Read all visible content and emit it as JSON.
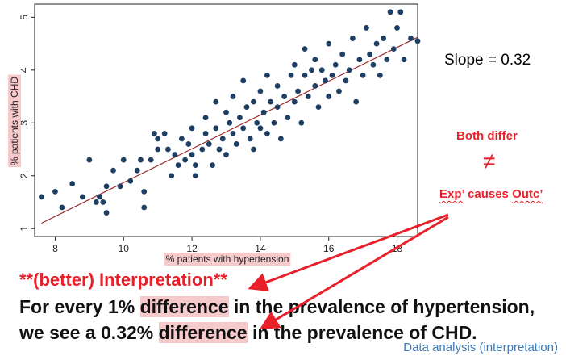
{
  "chart_data": {
    "type": "scatter",
    "xlabel": "% patients with hypertension",
    "ylabel": "% patients with CHD",
    "xlim": [
      7.4,
      18.6
    ],
    "ylim": [
      0.85,
      5.25
    ],
    "x_ticks": [
      8,
      10,
      12,
      14,
      16,
      18
    ],
    "x_tick_labels": [
      "8",
      "10",
      "12",
      "14",
      "16",
      "18"
    ],
    "y_ticks": [
      1,
      2,
      3,
      4,
      5
    ],
    "y_tick_labels": [
      "1",
      "2",
      "3",
      "4",
      "5"
    ],
    "point_color": "#1e3f63",
    "fit_line_color": "#9c2a2a",
    "fit_line": {
      "intercept": -1.33,
      "slope": 0.32,
      "x_range": [
        7.6,
        18.6
      ]
    },
    "points": [
      [
        7.6,
        1.6
      ],
      [
        8.0,
        1.7
      ],
      [
        8.2,
        1.4
      ],
      [
        8.5,
        1.85
      ],
      [
        8.8,
        1.6
      ],
      [
        9.0,
        2.3
      ],
      [
        9.2,
        1.5
      ],
      [
        9.3,
        1.6
      ],
      [
        9.4,
        1.5
      ],
      [
        9.5,
        1.8
      ],
      [
        9.5,
        1.3
      ],
      [
        9.7,
        2.1
      ],
      [
        9.9,
        1.8
      ],
      [
        10.0,
        2.3
      ],
      [
        10.2,
        1.9
      ],
      [
        10.4,
        2.1
      ],
      [
        10.5,
        2.3
      ],
      [
        10.6,
        1.7
      ],
      [
        10.6,
        1.4
      ],
      [
        10.8,
        2.3
      ],
      [
        10.9,
        2.8
      ],
      [
        11.0,
        2.5
      ],
      [
        11.0,
        2.7
      ],
      [
        11.2,
        2.8
      ],
      [
        11.3,
        2.5
      ],
      [
        11.4,
        2.0
      ],
      [
        11.5,
        2.4
      ],
      [
        11.6,
        2.2
      ],
      [
        11.7,
        2.7
      ],
      [
        11.8,
        2.3
      ],
      [
        11.9,
        2.6
      ],
      [
        12.0,
        2.4
      ],
      [
        12.0,
        2.9
      ],
      [
        12.1,
        2.2
      ],
      [
        12.1,
        2.0
      ],
      [
        12.3,
        2.5
      ],
      [
        12.4,
        2.8
      ],
      [
        12.4,
        3.1
      ],
      [
        12.5,
        2.6
      ],
      [
        12.6,
        2.2
      ],
      [
        12.7,
        2.9
      ],
      [
        12.7,
        3.4
      ],
      [
        12.8,
        2.5
      ],
      [
        12.9,
        2.7
      ],
      [
        13.0,
        3.2
      ],
      [
        13.0,
        2.4
      ],
      [
        13.1,
        3.0
      ],
      [
        13.2,
        2.8
      ],
      [
        13.2,
        3.5
      ],
      [
        13.3,
        2.6
      ],
      [
        13.4,
        3.1
      ],
      [
        13.5,
        2.9
      ],
      [
        13.5,
        3.8
      ],
      [
        13.6,
        3.3
      ],
      [
        13.7,
        2.7
      ],
      [
        13.8,
        3.4
      ],
      [
        13.8,
        2.5
      ],
      [
        13.9,
        3.0
      ],
      [
        14.0,
        3.6
      ],
      [
        14.0,
        2.9
      ],
      [
        14.1,
        3.2
      ],
      [
        14.2,
        2.8
      ],
      [
        14.2,
        3.9
      ],
      [
        14.3,
        3.4
      ],
      [
        14.4,
        3.0
      ],
      [
        14.5,
        3.7
      ],
      [
        14.5,
        3.3
      ],
      [
        14.6,
        2.7
      ],
      [
        14.7,
        3.5
      ],
      [
        14.8,
        3.1
      ],
      [
        14.9,
        3.9
      ],
      [
        15.0,
        3.4
      ],
      [
        15.0,
        4.1
      ],
      [
        15.1,
        3.6
      ],
      [
        15.2,
        3.0
      ],
      [
        15.3,
        3.9
      ],
      [
        15.3,
        4.4
      ],
      [
        15.4,
        3.5
      ],
      [
        15.5,
        4.0
      ],
      [
        15.6,
        3.7
      ],
      [
        15.6,
        4.2
      ],
      [
        15.7,
        3.3
      ],
      [
        15.8,
        4.0
      ],
      [
        15.9,
        3.8
      ],
      [
        16.0,
        4.5
      ],
      [
        16.0,
        3.5
      ],
      [
        16.1,
        3.9
      ],
      [
        16.2,
        4.1
      ],
      [
        16.3,
        3.6
      ],
      [
        16.4,
        4.3
      ],
      [
        16.5,
        3.8
      ],
      [
        16.6,
        4.0
      ],
      [
        16.7,
        4.6
      ],
      [
        16.8,
        3.4
      ],
      [
        16.9,
        4.2
      ],
      [
        17.0,
        3.9
      ],
      [
        17.1,
        4.8
      ],
      [
        17.2,
        4.3
      ],
      [
        17.3,
        4.1
      ],
      [
        17.4,
        4.5
      ],
      [
        17.5,
        3.9
      ],
      [
        17.6,
        4.6
      ],
      [
        17.7,
        4.2
      ],
      [
        17.8,
        5.1
      ],
      [
        17.9,
        4.4
      ],
      [
        18.0,
        4.8
      ],
      [
        18.1,
        5.1
      ],
      [
        18.2,
        4.2
      ],
      [
        18.4,
        4.6
      ],
      [
        18.6,
        4.55
      ]
    ]
  },
  "annotations": {
    "slope_text": "Slope = 0.32",
    "both_differ": "Both differ",
    "neq_symbol": "≠",
    "exp_word": "Exp’",
    "causes_word": " causes ",
    "outc_word": "Outc’",
    "heading": "**(better) Interpretation**"
  },
  "statement": {
    "line1_before": "For every 1% ",
    "line1_highlight": "difference",
    "line1_after": " in the prevalence of hypertension,",
    "line2_before": "we see a 0.32% ",
    "line2_highlight": "difference",
    "line2_after": " in the prevalence of CHD."
  },
  "footer": "Data analysis (interpretation)",
  "colors": {
    "accent_red": "#e8202a",
    "highlight": "#f6c9cb",
    "footer_blue": "#3d7ab8"
  }
}
